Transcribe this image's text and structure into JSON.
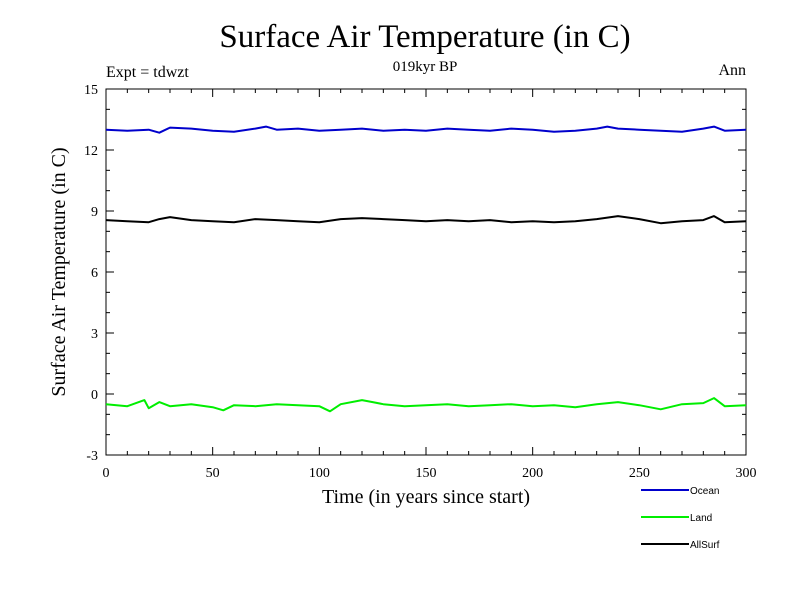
{
  "chart_data": {
    "type": "line",
    "title": "Surface Air Temperature (in C)",
    "subtitle": "019kyr BP",
    "left_note": "Expt = tdwzt",
    "right_note": "Ann",
    "xlabel": "Time (in years since start)",
    "ylabel": "Surface Air Temperature (in C)",
    "xlim": [
      0,
      300
    ],
    "ylim": [
      -3,
      15
    ],
    "xticks": [
      0,
      50,
      100,
      150,
      200,
      250,
      300
    ],
    "yticks": [
      -3,
      0,
      3,
      6,
      9,
      12,
      15
    ],
    "grid": false,
    "legend_position": "bottom-right",
    "series": [
      {
        "name": "Ocean",
        "color": "#0000cc",
        "x": [
          0,
          10,
          20,
          25,
          30,
          40,
          50,
          60,
          70,
          75,
          80,
          90,
          100,
          110,
          120,
          130,
          140,
          150,
          160,
          170,
          180,
          190,
          200,
          210,
          220,
          230,
          235,
          240,
          250,
          260,
          270,
          280,
          285,
          290,
          300
        ],
        "y": [
          13.0,
          12.95,
          13.0,
          12.85,
          13.1,
          13.05,
          12.95,
          12.9,
          13.05,
          13.15,
          13.0,
          13.05,
          12.95,
          13.0,
          13.05,
          12.95,
          13.0,
          12.95,
          13.05,
          13.0,
          12.95,
          13.05,
          13.0,
          12.9,
          12.95,
          13.05,
          13.15,
          13.05,
          13.0,
          12.95,
          12.9,
          13.05,
          13.15,
          12.95,
          13.0
        ]
      },
      {
        "name": "Land",
        "color": "#00ee00",
        "x": [
          0,
          10,
          18,
          20,
          25,
          30,
          40,
          50,
          55,
          60,
          70,
          80,
          90,
          100,
          105,
          110,
          120,
          125,
          130,
          140,
          150,
          160,
          170,
          180,
          190,
          200,
          210,
          220,
          230,
          240,
          250,
          260,
          270,
          280,
          285,
          290,
          300
        ],
        "y": [
          -0.5,
          -0.6,
          -0.3,
          -0.7,
          -0.4,
          -0.6,
          -0.5,
          -0.65,
          -0.8,
          -0.55,
          -0.6,
          -0.5,
          -0.55,
          -0.6,
          -0.85,
          -0.5,
          -0.3,
          -0.4,
          -0.5,
          -0.6,
          -0.55,
          -0.5,
          -0.6,
          -0.55,
          -0.5,
          -0.6,
          -0.55,
          -0.65,
          -0.5,
          -0.4,
          -0.55,
          -0.75,
          -0.5,
          -0.45,
          -0.2,
          -0.6,
          -0.55
        ]
      },
      {
        "name": "AllSurf",
        "color": "#000000",
        "x": [
          0,
          10,
          20,
          25,
          30,
          40,
          50,
          60,
          70,
          80,
          90,
          100,
          110,
          120,
          130,
          140,
          150,
          160,
          170,
          180,
          190,
          200,
          210,
          220,
          230,
          240,
          250,
          260,
          270,
          280,
          285,
          290,
          300
        ],
        "y": [
          8.55,
          8.5,
          8.45,
          8.6,
          8.7,
          8.55,
          8.5,
          8.45,
          8.6,
          8.55,
          8.5,
          8.45,
          8.6,
          8.65,
          8.6,
          8.55,
          8.5,
          8.55,
          8.5,
          8.55,
          8.45,
          8.5,
          8.45,
          8.5,
          8.6,
          8.75,
          8.6,
          8.4,
          8.5,
          8.55,
          8.75,
          8.45,
          8.5
        ]
      }
    ]
  }
}
